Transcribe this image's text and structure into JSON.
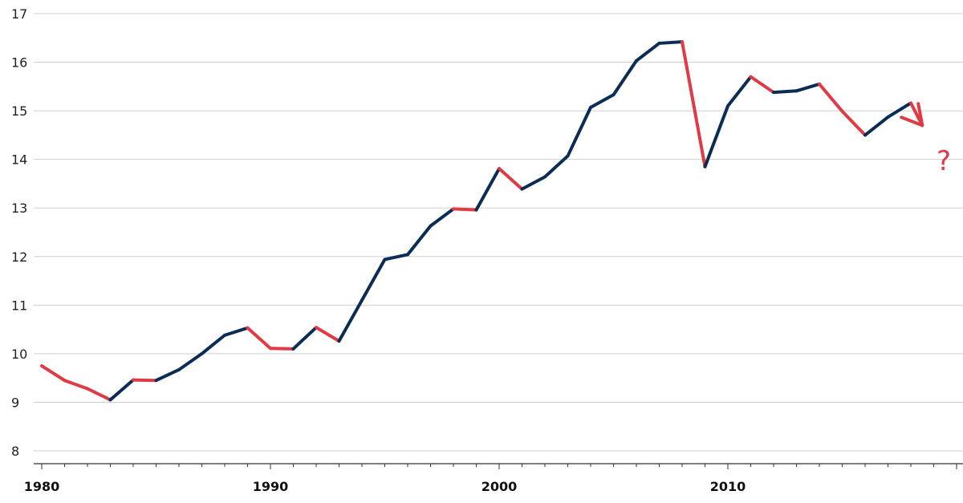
{
  "colors": {
    "growth": "#0b2d55",
    "decline": "#e03a45",
    "grid": "#cfcfcf",
    "axis": "#333333"
  },
  "chart_data": {
    "type": "line",
    "title": "",
    "xlabel": "",
    "ylabel": "",
    "xlim": [
      1980,
      2020
    ],
    "ylim": [
      8,
      17
    ],
    "y_ticks": [
      8,
      9,
      10,
      11,
      12,
      13,
      14,
      15,
      16,
      17
    ],
    "x_tick_labels": [
      "1980",
      "1990",
      "2000",
      "2010"
    ],
    "x_ticks": [
      1980,
      1990,
      2000,
      2010
    ],
    "grid": true,
    "legend": "none",
    "x": [
      1980,
      1981,
      1982,
      1983,
      1984,
      1985,
      1986,
      1987,
      1988,
      1989,
      1990,
      1991,
      1992,
      1993,
      1994,
      1995,
      1996,
      1997,
      1998,
      1999,
      2000,
      2001,
      2002,
      2003,
      2004,
      2005,
      2006,
      2007,
      2008,
      2009,
      2010,
      2011,
      2012,
      2013,
      2014,
      2015,
      2016,
      2017,
      2018
    ],
    "values": [
      9.75,
      9.45,
      9.28,
      9.05,
      9.46,
      9.45,
      9.67,
      10.0,
      10.38,
      10.53,
      10.11,
      10.1,
      10.54,
      10.26,
      11.1,
      11.94,
      12.04,
      12.63,
      12.98,
      12.96,
      13.81,
      13.39,
      13.64,
      14.07,
      15.07,
      15.33,
      16.03,
      16.39,
      16.42,
      13.85,
      15.1,
      15.7,
      15.38,
      15.41,
      15.55,
      14.99,
      14.5,
      14.87,
      15.16
    ],
    "trend_arrow": {
      "x": [
        2018,
        2018.5
      ],
      "y": [
        15.16,
        14.7
      ]
    },
    "annotation": "?"
  }
}
